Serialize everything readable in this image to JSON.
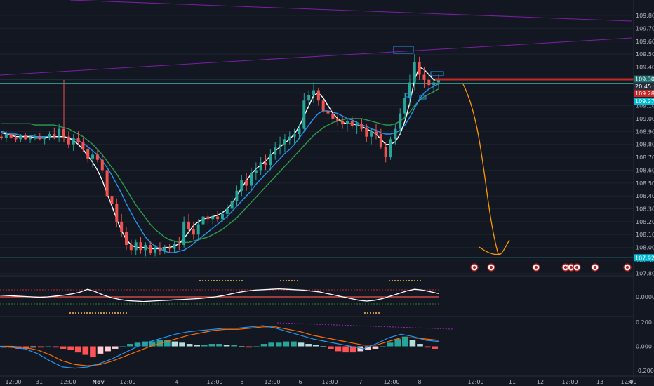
{
  "chart_data": {
    "type": "candlestick",
    "price_axis": {
      "ylim": [
        107.78,
        109.92
      ],
      "ticks": [
        "109.800",
        "109.700",
        "109.600",
        "109.500",
        "109.400",
        "109.300",
        "109.200",
        "109.100",
        "109.000",
        "108.900",
        "108.800",
        "108.700",
        "108.600",
        "108.500",
        "108.400",
        "108.300",
        "108.200",
        "108.100",
        "108.000",
        "107.900",
        "107.800"
      ]
    },
    "time_axis": {
      "labels": [
        "12:00",
        "31",
        "12:00",
        "Nov",
        "12:00",
        "4",
        "12:00",
        "5",
        "12:00",
        "6",
        "12:00",
        "7",
        "12:00",
        "8",
        "12:00",
        "11",
        "12",
        "12:00",
        "13",
        "12:00",
        "14"
      ],
      "bold": [
        "Nov"
      ]
    },
    "price_tags": [
      {
        "label": "109.307",
        "value": 109.307,
        "color": "#1e6f6f"
      },
      {
        "label": "20:45",
        "value": 109.25,
        "color": "#2a2e39"
      },
      {
        "label": "109.285",
        "value": 109.195,
        "color": "#c62828"
      },
      {
        "label": "109.274",
        "value": 109.135,
        "color": "#00bcd4"
      },
      {
        "label": "107.920",
        "value": 107.92,
        "color": "#00bcd4"
      }
    ],
    "horizontal_levels": [
      {
        "value": 109.307,
        "color": "#26a69a"
      },
      {
        "value": 109.274,
        "color": "#26a69a"
      },
      {
        "value": 107.92,
        "color": "#26a69a"
      }
    ],
    "candles": [
      [
        108.86,
        108.88,
        108.83,
        108.85
      ],
      [
        108.85,
        108.9,
        108.82,
        108.88
      ],
      [
        108.88,
        108.9,
        108.84,
        108.85
      ],
      [
        108.85,
        108.87,
        108.82,
        108.84
      ],
      [
        108.84,
        108.88,
        108.82,
        108.87
      ],
      [
        108.87,
        108.89,
        108.83,
        108.84
      ],
      [
        108.84,
        108.87,
        108.81,
        108.85
      ],
      [
        108.85,
        108.88,
        108.83,
        108.86
      ],
      [
        108.86,
        108.89,
        108.83,
        108.84
      ],
      [
        108.84,
        108.86,
        108.8,
        108.85
      ],
      [
        108.85,
        108.9,
        108.83,
        108.88
      ],
      [
        108.88,
        108.93,
        108.84,
        108.86
      ],
      [
        108.86,
        108.96,
        108.82,
        108.92
      ],
      [
        108.92,
        109.3,
        108.82,
        108.86
      ],
      [
        108.86,
        108.9,
        108.77,
        108.8
      ],
      [
        108.8,
        108.88,
        108.75,
        108.85
      ],
      [
        108.85,
        108.9,
        108.8,
        108.82
      ],
      [
        108.82,
        108.85,
        108.74,
        108.76
      ],
      [
        108.76,
        108.8,
        108.66,
        108.69
      ],
      [
        108.69,
        108.74,
        108.62,
        108.72
      ],
      [
        108.72,
        108.76,
        108.66,
        108.68
      ],
      [
        108.68,
        108.72,
        108.58,
        108.6
      ],
      [
        108.6,
        108.64,
        108.36,
        108.4
      ],
      [
        108.4,
        108.44,
        108.3,
        108.34
      ],
      [
        108.34,
        108.38,
        108.16,
        108.2
      ],
      [
        108.2,
        108.26,
        108.08,
        108.12
      ],
      [
        108.12,
        108.16,
        107.98,
        108.02
      ],
      [
        108.02,
        108.06,
        107.94,
        107.98
      ],
      [
        107.98,
        108.06,
        107.94,
        108.04
      ],
      [
        108.04,
        108.08,
        107.95,
        107.98
      ],
      [
        107.98,
        108.04,
        107.93,
        108.02
      ],
      [
        108.02,
        108.05,
        107.94,
        107.96
      ],
      [
        107.96,
        108.02,
        107.93,
        108.0
      ],
      [
        108.0,
        108.04,
        107.94,
        107.97
      ],
      [
        107.97,
        108.02,
        107.95,
        108.0
      ],
      [
        108.0,
        108.03,
        107.96,
        107.99
      ],
      [
        107.99,
        108.05,
        107.96,
        108.03
      ],
      [
        108.03,
        108.08,
        107.98,
        108.02
      ],
      [
        108.02,
        108.24,
        108.0,
        108.2
      ],
      [
        108.2,
        108.26,
        108.12,
        108.14
      ],
      [
        108.14,
        108.2,
        108.06,
        108.1
      ],
      [
        108.1,
        108.22,
        108.06,
        108.18
      ],
      [
        108.18,
        108.3,
        108.14,
        108.24
      ],
      [
        108.24,
        108.28,
        108.18,
        108.22
      ],
      [
        108.22,
        108.26,
        108.18,
        108.24
      ],
      [
        108.24,
        108.28,
        108.2,
        108.22
      ],
      [
        108.22,
        108.28,
        108.2,
        108.26
      ],
      [
        108.26,
        108.34,
        108.22,
        108.3
      ],
      [
        108.3,
        108.4,
        108.26,
        108.36
      ],
      [
        108.36,
        108.48,
        108.32,
        108.44
      ],
      [
        108.44,
        108.56,
        108.4,
        108.52
      ],
      [
        108.52,
        108.58,
        108.44,
        108.48
      ],
      [
        108.48,
        108.62,
        108.44,
        108.58
      ],
      [
        108.58,
        108.66,
        108.52,
        108.6
      ],
      [
        108.6,
        108.7,
        108.56,
        108.66
      ],
      [
        108.66,
        108.72,
        108.6,
        108.64
      ],
      [
        108.64,
        108.76,
        108.6,
        108.72
      ],
      [
        108.72,
        108.82,
        108.68,
        108.78
      ],
      [
        108.78,
        108.86,
        108.72,
        108.8
      ],
      [
        108.8,
        108.88,
        108.74,
        108.84
      ],
      [
        108.84,
        108.9,
        108.8,
        108.86
      ],
      [
        108.86,
        108.92,
        108.8,
        108.88
      ],
      [
        108.88,
        108.96,
        108.84,
        108.92
      ],
      [
        108.92,
        109.2,
        108.9,
        109.14
      ],
      [
        109.14,
        109.22,
        109.08,
        109.18
      ],
      [
        109.18,
        109.28,
        109.12,
        109.22
      ],
      [
        109.22,
        109.24,
        109.1,
        109.14
      ],
      [
        109.14,
        109.18,
        109.04,
        109.06
      ],
      [
        109.06,
        109.1,
        109.0,
        109.04
      ],
      [
        109.04,
        109.08,
        108.96,
        109.0
      ],
      [
        109.0,
        109.04,
        108.94,
        108.98
      ],
      [
        108.98,
        109.02,
        108.92,
        108.96
      ],
      [
        108.96,
        109.0,
        108.9,
        108.98
      ],
      [
        108.98,
        109.02,
        108.92,
        108.94
      ],
      [
        108.94,
        108.98,
        108.88,
        108.96
      ],
      [
        108.96,
        109.0,
        108.9,
        108.92
      ],
      [
        108.92,
        108.96,
        108.82,
        108.86
      ],
      [
        108.86,
        108.92,
        108.8,
        108.9
      ],
      [
        108.9,
        108.96,
        108.84,
        108.88
      ],
      [
        108.88,
        108.92,
        108.76,
        108.78
      ],
      [
        108.78,
        108.82,
        108.66,
        108.7
      ],
      [
        108.7,
        108.86,
        108.68,
        108.84
      ],
      [
        108.84,
        108.96,
        108.8,
        108.92
      ],
      [
        108.92,
        109.08,
        108.88,
        109.04
      ],
      [
        109.04,
        109.2,
        109.0,
        109.16
      ],
      [
        109.16,
        109.34,
        109.1,
        109.28
      ],
      [
        109.28,
        109.5,
        109.22,
        109.44
      ],
      [
        109.44,
        109.48,
        109.3,
        109.34
      ],
      [
        109.34,
        109.4,
        109.24,
        109.3
      ],
      [
        109.3,
        109.36,
        109.22,
        109.26
      ],
      [
        109.26,
        109.32,
        109.2,
        109.28
      ],
      [
        109.28,
        109.34,
        109.24,
        109.3
      ]
    ],
    "ma_white": [
      108.89,
      108.88,
      108.87,
      108.86,
      108.86,
      108.86,
      108.86,
      108.85,
      108.85,
      108.85,
      108.86,
      108.86,
      108.86,
      108.86,
      108.85,
      108.83,
      108.8,
      108.76,
      108.71,
      108.66,
      108.6,
      108.52,
      108.42,
      108.32,
      108.22,
      108.13,
      108.06,
      108.02,
      108.0,
      108.0,
      108.0,
      107.99,
      107.99,
      107.99,
      108.0,
      108.0,
      108.01,
      108.03,
      108.07,
      108.12,
      108.17,
      108.2,
      108.22,
      108.23,
      108.24,
      108.25,
      108.27,
      108.3,
      108.34,
      108.4,
      108.46,
      108.52,
      108.57,
      108.61,
      108.64,
      108.67,
      108.71,
      108.75,
      108.78,
      108.81,
      108.84,
      108.88,
      108.94,
      109.02,
      109.1,
      109.18,
      109.2,
      109.16,
      109.1,
      109.04,
      109.0,
      108.97,
      108.96,
      108.96,
      108.95,
      108.94,
      108.92,
      108.9,
      108.88,
      108.84,
      108.8,
      108.8,
      108.82,
      108.88,
      108.98,
      109.12,
      109.3,
      109.4,
      109.38,
      109.34,
      109.3,
      109.3
    ],
    "ma_blue": [
      108.9,
      108.89,
      108.88,
      108.88,
      108.87,
      108.87,
      108.87,
      108.86,
      108.86,
      108.86,
      108.86,
      108.86,
      108.86,
      108.86,
      108.85,
      108.84,
      108.83,
      108.81,
      108.78,
      108.75,
      108.72,
      108.67,
      108.62,
      108.56,
      108.49,
      108.42,
      108.34,
      108.27,
      108.2,
      108.14,
      108.08,
      108.04,
      108.01,
      107.99,
      107.97,
      107.96,
      107.96,
      107.97,
      107.98,
      108.0,
      108.03,
      108.06,
      108.09,
      108.12,
      108.15,
      108.18,
      108.21,
      108.24,
      108.28,
      108.32,
      108.36,
      108.4,
      108.44,
      108.49,
      108.53,
      108.57,
      108.61,
      108.65,
      108.69,
      108.73,
      108.76,
      108.8,
      108.85,
      108.9,
      108.95,
      109.0,
      109.04,
      109.06,
      109.06,
      109.05,
      109.04,
      109.02,
      109.0,
      108.99,
      108.97,
      108.95,
      108.94,
      108.92,
      108.91,
      108.89,
      108.88,
      108.88,
      108.89,
      108.91,
      108.95,
      109.01,
      109.08,
      109.15,
      109.2,
      109.23,
      109.25,
      109.27
    ],
    "ma_green": [
      108.96,
      108.96,
      108.96,
      108.96,
      108.96,
      108.96,
      108.96,
      108.95,
      108.95,
      108.95,
      108.95,
      108.95,
      108.94,
      108.93,
      108.92,
      108.9,
      108.88,
      108.86,
      108.83,
      108.8,
      108.76,
      108.72,
      108.67,
      108.62,
      108.57,
      108.51,
      108.45,
      108.39,
      108.33,
      108.28,
      108.23,
      108.18,
      108.14,
      108.11,
      108.08,
      108.06,
      108.05,
      108.04,
      108.04,
      108.04,
      108.05,
      108.06,
      108.07,
      108.08,
      108.1,
      108.12,
      108.14,
      108.17,
      108.2,
      108.23,
      108.27,
      108.31,
      108.35,
      108.39,
      108.43,
      108.47,
      108.51,
      108.55,
      108.59,
      108.63,
      108.67,
      108.71,
      108.75,
      108.79,
      108.83,
      108.87,
      108.9,
      108.93,
      108.95,
      108.97,
      108.98,
      108.99,
      109.0,
      109.0,
      109.0,
      109.0,
      108.99,
      108.98,
      108.97,
      108.96,
      108.95,
      108.95,
      108.96,
      108.98,
      109.01,
      109.05,
      109.1,
      109.14,
      109.17,
      109.19,
      109.21,
      109.23
    ],
    "osc_panel": {
      "tick": "0.0000",
      "white_line": [
        0.2,
        0.15,
        0.1,
        0.05,
        0.0,
        -0.05,
        0.0,
        0.1,
        0.2,
        0.35,
        0.55,
        0.9,
        0.6,
        0.2,
        -0.1,
        -0.3,
        -0.45,
        -0.5,
        -0.55,
        -0.5,
        -0.45,
        -0.4,
        -0.35,
        -0.3,
        -0.25,
        -0.2,
        -0.1,
        0.0,
        0.15,
        0.35,
        0.55,
        0.7,
        0.8,
        0.85,
        0.9,
        0.95,
        0.9,
        0.85,
        0.8,
        0.7,
        0.6,
        0.4,
        0.2,
        0.0,
        -0.2,
        -0.4,
        -0.5,
        -0.4,
        -0.2,
        0.1,
        0.4,
        0.7,
        0.9,
        0.8,
        0.6,
        0.4
      ]
    },
    "macd_panel": {
      "ticks": [
        "0.200",
        "0.000",
        "-0.200"
      ],
      "ylim": [
        -0.24,
        0.24
      ],
      "hist": [
        -0.01,
        -0.01,
        -0.02,
        -0.02,
        -0.01,
        -0.01,
        0.0,
        -0.01,
        -0.02,
        -0.03,
        -0.05,
        -0.07,
        -0.09,
        -0.06,
        -0.04,
        -0.02,
        0.0,
        0.02,
        0.03,
        0.04,
        0.04,
        0.05,
        0.05,
        0.04,
        0.03,
        0.02,
        0.01,
        0.01,
        0.02,
        0.02,
        0.01,
        0.01,
        0.0,
        -0.01,
        0.0,
        0.02,
        0.03,
        0.03,
        0.04,
        0.04,
        0.03,
        0.02,
        0.01,
        0.0,
        -0.02,
        -0.04,
        -0.05,
        -0.05,
        -0.04,
        -0.03,
        -0.02,
        0.0,
        0.03,
        0.06,
        0.08,
        0.05,
        0.02,
        -0.01,
        -0.02
      ],
      "macd": [
        0.0,
        -0.01,
        -0.02,
        -0.06,
        -0.12,
        -0.17,
        -0.18,
        -0.17,
        -0.14,
        -0.1,
        -0.05,
        0.0,
        0.04,
        0.07,
        0.1,
        0.12,
        0.13,
        0.14,
        0.15,
        0.15,
        0.16,
        0.17,
        0.15,
        0.12,
        0.09,
        0.06,
        0.04,
        0.02,
        0.0,
        -0.02,
        0.02,
        0.07,
        0.1,
        0.08,
        0.05,
        0.04
      ],
      "signal": [
        0.0,
        0.0,
        -0.01,
        -0.03,
        -0.07,
        -0.12,
        -0.15,
        -0.16,
        -0.15,
        -0.12,
        -0.08,
        -0.04,
        0.0,
        0.03,
        0.06,
        0.09,
        0.11,
        0.13,
        0.14,
        0.14,
        0.15,
        0.16,
        0.16,
        0.14,
        0.12,
        0.09,
        0.07,
        0.05,
        0.03,
        0.01,
        0.01,
        0.04,
        0.07,
        0.07,
        0.06,
        0.05
      ]
    }
  }
}
